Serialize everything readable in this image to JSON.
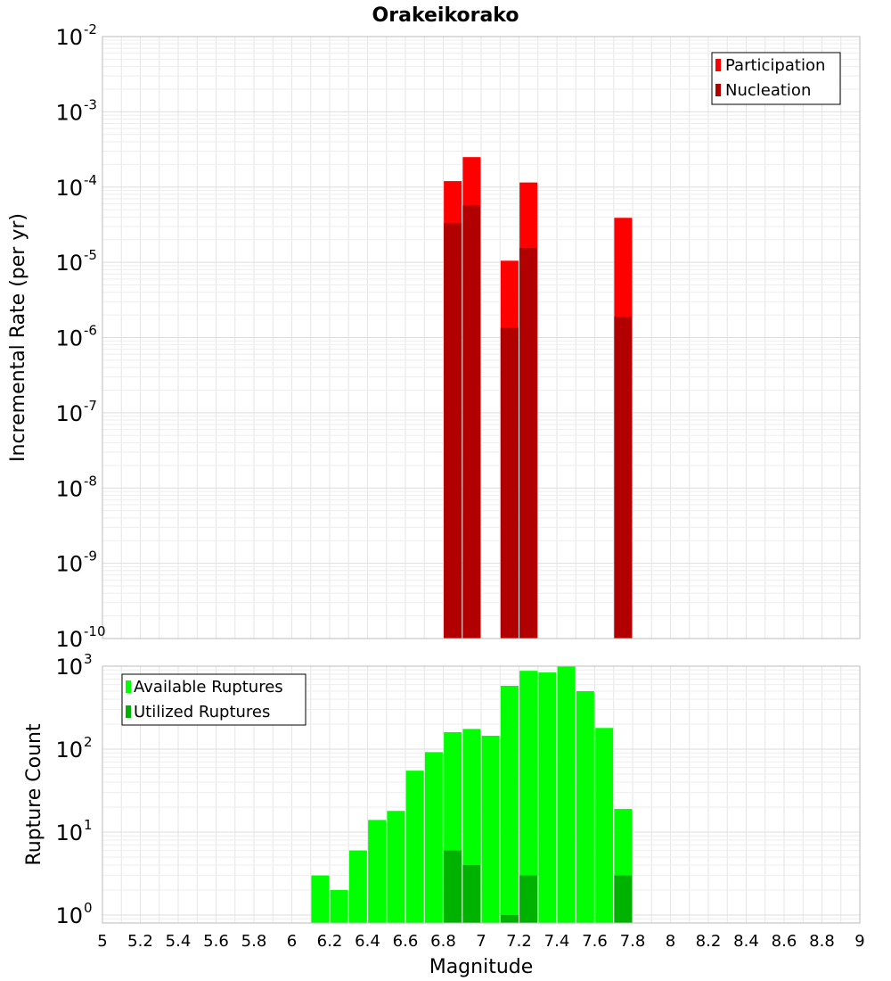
{
  "title": "Orakeikorako",
  "colors": {
    "participation": "#ff0000",
    "nucleation": "#b20000",
    "available": "#00ff00",
    "utilized": "#00b200",
    "grid": "#e6e6e6",
    "frame": "#bbbbbb"
  },
  "chart_data": [
    {
      "type": "bar",
      "ylabel": "Incremental Rate (per yr)",
      "yscale": "log",
      "ylim": [
        1e-10,
        0.01
      ],
      "xlim": [
        5,
        9
      ],
      "grid": true,
      "legend_position": "top-right",
      "y_tick_exponents": [
        "-10",
        "-9",
        "-8",
        "-7",
        "-6",
        "-5",
        "-4",
        "-3",
        "-2"
      ],
      "series": [
        {
          "name": "Participation",
          "x": [
            6.85,
            6.95,
            7.15,
            7.25,
            7.75
          ],
          "values": [
            0.00012,
            0.00025,
            1.05e-05,
            0.000115,
            3.9e-05
          ]
        },
        {
          "name": "Nucleation",
          "x": [
            6.85,
            6.95,
            7.15,
            7.25,
            7.75
          ],
          "values": [
            3.3e-05,
            5.7e-05,
            1.35e-06,
            1.55e-05,
            1.9e-06
          ]
        }
      ]
    },
    {
      "type": "bar",
      "ylabel": "Rupture Count",
      "xlabel": "Magnitude",
      "yscale": "log",
      "ylim": [
        0.8,
        1000
      ],
      "xlim": [
        5,
        9
      ],
      "grid": true,
      "legend_position": "top-left",
      "y_tick_exponents": [
        "0",
        "1",
        "2",
        "3"
      ],
      "x_tick_labels": [
        "5",
        "5.2",
        "5.4",
        "5.6",
        "5.8",
        "6",
        "6.2",
        "6.4",
        "6.6",
        "6.8",
        "7",
        "7.2",
        "7.4",
        "7.6",
        "7.8",
        "8",
        "8.2",
        "8.4",
        "8.6",
        "8.8",
        "9"
      ],
      "series": [
        {
          "name": "Available Ruptures",
          "x": [
            6.15,
            6.25,
            6.35,
            6.45,
            6.55,
            6.65,
            6.75,
            6.85,
            6.95,
            7.05,
            7.15,
            7.25,
            7.35,
            7.45,
            7.55,
            7.65,
            7.75
          ],
          "values": [
            3,
            2,
            6,
            14,
            18,
            55,
            92,
            160,
            175,
            145,
            580,
            880,
            840,
            1000,
            500,
            180,
            19
          ]
        },
        {
          "name": "Utilized Ruptures",
          "x": [
            6.85,
            6.95,
            7.15,
            7.25,
            7.75
          ],
          "values": [
            6,
            4,
            1,
            3,
            3
          ]
        }
      ]
    }
  ]
}
